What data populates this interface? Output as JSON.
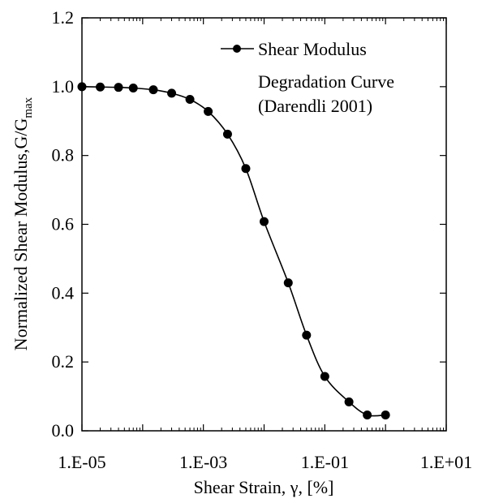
{
  "chart_data": {
    "type": "line",
    "title": "",
    "xlabel": "Shear Strain, γ, [%]",
    "ylabel_main": "Normalized Shear Modulus,G/G",
    "ylabel_sub": "max",
    "x_scale": "log",
    "xlim": [
      1e-05,
      10
    ],
    "ylim": [
      0.0,
      1.2
    ],
    "x_ticks": [
      "1.E-05",
      "1.E-03",
      "1.E-01",
      "1.E+01"
    ],
    "y_ticks": [
      "0.0",
      "0.2",
      "0.4",
      "0.6",
      "0.8",
      "1.0",
      "1.2"
    ],
    "grid": false,
    "legend_position": "top-right",
    "legend_lines": [
      "Shear Modulus",
      "Degradation Curve",
      "(Darendli 2001)"
    ],
    "series": [
      {
        "name": "Shear Modulus Degradation Curve (Darendli 2001)",
        "color": "#000000",
        "marker": "circle",
        "x": [
          1e-05,
          2e-05,
          4e-05,
          7e-05,
          0.00015,
          0.0003,
          0.0006,
          0.0012,
          0.0025,
          0.005,
          0.01,
          0.025,
          0.05,
          0.1,
          0.25,
          0.5,
          1.0
        ],
        "y": [
          1.0,
          0.999,
          0.998,
          0.996,
          0.991,
          0.981,
          0.963,
          0.928,
          0.862,
          0.762,
          0.608,
          0.43,
          0.278,
          0.158,
          0.084,
          0.046,
          0.046
        ]
      }
    ]
  }
}
